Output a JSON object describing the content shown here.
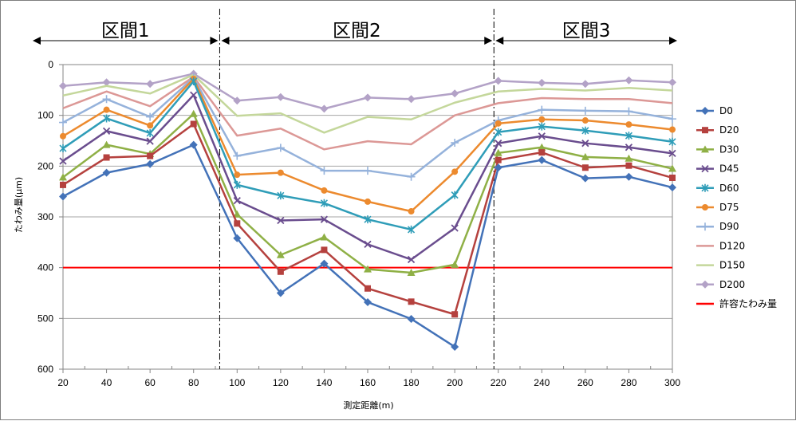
{
  "chart_data": {
    "type": "line",
    "xlabel": "測定距離(m)",
    "ylabel": "たわみ量(μm)",
    "x": [
      20,
      40,
      60,
      80,
      100,
      120,
      140,
      160,
      180,
      200,
      220,
      240,
      260,
      280,
      300
    ],
    "xlim": [
      20,
      300
    ],
    "ylim": [
      0,
      600
    ],
    "y_inverted": true,
    "y_ticks": [
      0,
      100,
      200,
      300,
      400,
      500,
      600
    ],
    "grid": true,
    "legend_position": "right",
    "sections": [
      {
        "label": "区間1",
        "from": 20,
        "to": 92
      },
      {
        "label": "区間2",
        "from": 92,
        "to": 218
      },
      {
        "label": "区間3",
        "from": 218,
        "to": 300
      }
    ],
    "section_dividers": [
      92,
      218
    ],
    "threshold": {
      "name": "許容たわみ量",
      "value": 400,
      "color": "#ff0000"
    },
    "series": [
      {
        "name": "D0",
        "color": "#4372b8",
        "marker": "diamond",
        "values": [
          260,
          213,
          196,
          158,
          342,
          450,
          392,
          468,
          501,
          556,
          203,
          188,
          224,
          221,
          242
        ]
      },
      {
        "name": "D20",
        "color": "#b5413e",
        "marker": "square",
        "values": [
          237,
          183,
          180,
          117,
          313,
          408,
          365,
          441,
          467,
          492,
          188,
          173,
          203,
          199,
          223
        ]
      },
      {
        "name": "D30",
        "color": "#8fb046",
        "marker": "triangle",
        "values": [
          222,
          158,
          176,
          97,
          295,
          375,
          340,
          403,
          410,
          394,
          174,
          163,
          182,
          185,
          205
        ]
      },
      {
        "name": "D45",
        "color": "#6a4d8e",
        "marker": "x",
        "values": [
          190,
          131,
          151,
          60,
          268,
          307,
          305,
          354,
          384,
          322,
          155,
          141,
          155,
          163,
          175
        ]
      },
      {
        "name": "D60",
        "color": "#2f9db8",
        "marker": "star",
        "values": [
          165,
          106,
          135,
          33,
          237,
          258,
          273,
          305,
          325,
          257,
          133,
          122,
          130,
          140,
          152
        ]
      },
      {
        "name": "D75",
        "color": "#ec8a2e",
        "marker": "circle",
        "values": [
          141,
          89,
          120,
          28,
          217,
          213,
          248,
          270,
          289,
          211,
          116,
          108,
          110,
          118,
          128
        ]
      },
      {
        "name": "D90",
        "color": "#95b2db",
        "marker": "plus",
        "values": [
          114,
          68,
          103,
          26,
          180,
          164,
          209,
          209,
          221,
          154,
          110,
          89,
          91,
          92,
          107
        ]
      },
      {
        "name": "D120",
        "color": "#dc9896",
        "marker": "none",
        "values": [
          86,
          53,
          82,
          24,
          140,
          126,
          167,
          151,
          157,
          100,
          76,
          66,
          68,
          68,
          76
        ]
      },
      {
        "name": "D150",
        "color": "#c4d79b",
        "marker": "none",
        "values": [
          61,
          42,
          57,
          20,
          101,
          96,
          134,
          103,
          108,
          75,
          53,
          48,
          51,
          46,
          51
        ]
      },
      {
        "name": "D200",
        "color": "#b3a2c7",
        "marker": "diamond",
        "values": [
          42,
          35,
          38,
          18,
          71,
          64,
          87,
          65,
          68,
          57,
          32,
          36,
          38,
          31,
          35
        ]
      }
    ]
  }
}
